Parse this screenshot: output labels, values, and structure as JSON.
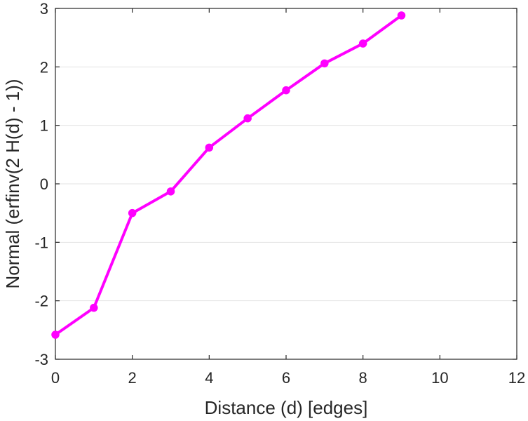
{
  "chart_data": {
    "type": "line",
    "title": "",
    "xlabel": "Distance (d) [edges]",
    "ylabel": "Normal (erfinv(2 H(d) - 1))",
    "xlim": [
      0,
      12
    ],
    "ylim": [
      -3,
      3
    ],
    "xticks": [
      0,
      2,
      4,
      6,
      8,
      10,
      12
    ],
    "yticks": [
      -3,
      -2,
      -1,
      0,
      1,
      2,
      3
    ],
    "grid": "horizontal",
    "legend": "none",
    "series": [
      {
        "color": "#ff00ff",
        "marker": "circle",
        "x": [
          0,
          1,
          2,
          3,
          4,
          5,
          6,
          7,
          8,
          9
        ],
        "y": [
          -2.58,
          -2.12,
          -0.5,
          -0.13,
          0.62,
          1.12,
          1.6,
          2.06,
          2.4,
          2.88
        ]
      }
    ]
  }
}
